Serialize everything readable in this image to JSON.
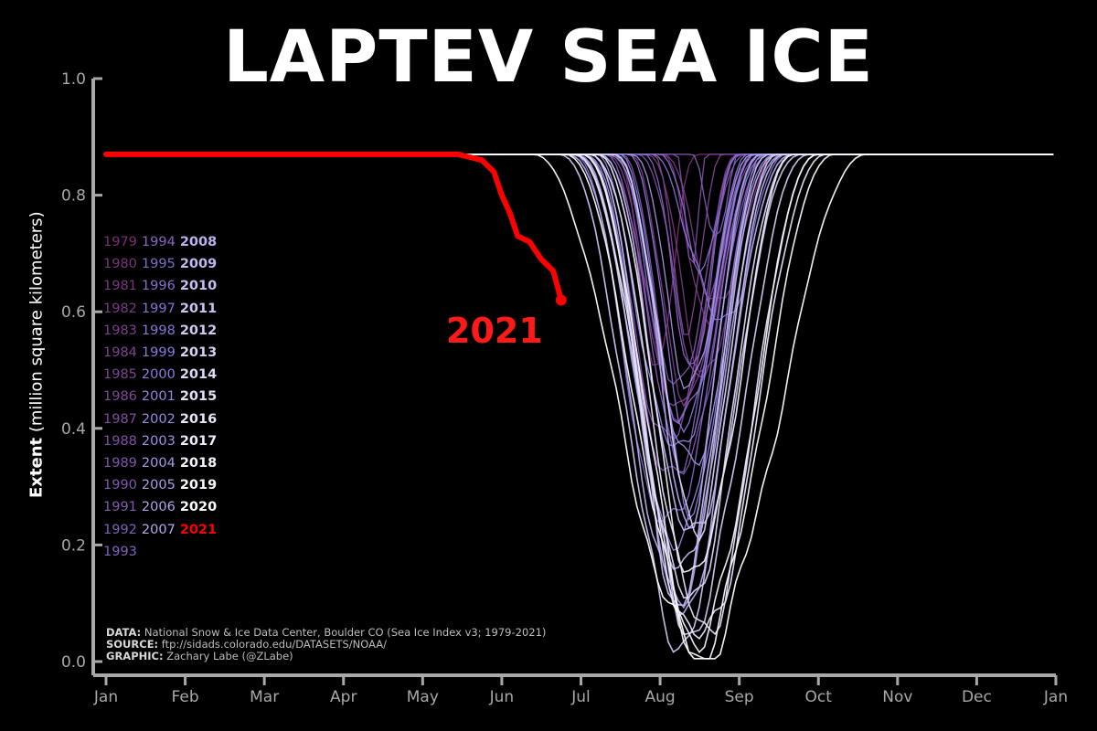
{
  "title": "LAPTEV SEA ICE",
  "ylabel_bold": "Extent",
  "ylabel_rest": " (million square kilometers)",
  "label_2021": "2021",
  "credits": {
    "data_label": "DATA:",
    "data_text": " National Snow & Ice Data Center, Boulder CO (Sea Ice Index v3; 1979-2021)",
    "source_label": "SOURCE:",
    "source_text": " ftp://sidads.colorado.edu/DATASETS/NOAA/",
    "graphic_label": "GRAPHIC:",
    "graphic_text": " Zachary Labe (@ZLabe)"
  },
  "legend_rows": [
    [
      "1979",
      "1994",
      "2008"
    ],
    [
      "1980",
      "1995",
      "2009"
    ],
    [
      "1981",
      "1996",
      "2010"
    ],
    [
      "1982",
      "1997",
      "2011"
    ],
    [
      "1983",
      "1998",
      "2012"
    ],
    [
      "1984",
      "1999",
      "2013"
    ],
    [
      "1985",
      "2000",
      "2014"
    ],
    [
      "1986",
      "2001",
      "2015"
    ],
    [
      "1987",
      "2002",
      "2016"
    ],
    [
      "1988",
      "2003",
      "2017"
    ],
    [
      "1989",
      "2004",
      "2018"
    ],
    [
      "1990",
      "2005",
      "2019"
    ],
    [
      "1991",
      "2006",
      "2020"
    ],
    [
      "1992",
      "2007",
      "2021"
    ],
    [
      "1993"
    ]
  ],
  "colors": {
    "background": "#000000",
    "axis": "#a8a8a8",
    "highlight": "#ff0000",
    "old_years": "#7a2f78",
    "mid_years": "#8a7be0",
    "recent_years": "#ffffff"
  },
  "chart_data": {
    "type": "line",
    "x_ticks": [
      "Jan",
      "Feb",
      "Mar",
      "Apr",
      "May",
      "Jun",
      "Jul",
      "Aug",
      "Sep",
      "Oct",
      "Nov",
      "Dec",
      "Jan"
    ],
    "ylim": [
      0.0,
      1.0
    ],
    "y_ticks": [
      "0.0",
      "0.2",
      "0.4",
      "0.6",
      "0.8",
      "1.0"
    ],
    "grid": false,
    "max_extent": 0.87,
    "highlight_series": {
      "name": "2021",
      "x_month": [
        0,
        4.45,
        4.75,
        4.9,
        5.0,
        5.1,
        5.2,
        5.35,
        5.5,
        5.65,
        5.75
      ],
      "values": [
        0.87,
        0.87,
        0.86,
        0.84,
        0.8,
        0.77,
        0.73,
        0.72,
        0.69,
        0.67,
        0.62
      ]
    },
    "historical_series": [
      {
        "year": 1979,
        "ms": 6.4,
        "mf": 7.5,
        "min": 0.52,
        "dip": 3.2
      },
      {
        "year": 1980,
        "ms": 7.0,
        "mf": 8.2,
        "min": 0.56,
        "dip": 2.6
      },
      {
        "year": 1981,
        "ms": 6.8,
        "mf": 8.4,
        "min": 0.48,
        "dip": 3.0
      },
      {
        "year": 1982,
        "ms": 7.0,
        "mf": 8.5,
        "min": 0.6,
        "dip": 2.8
      },
      {
        "year": 1983,
        "ms": 6.6,
        "mf": 8.0,
        "min": 0.44,
        "dip": 3.0
      },
      {
        "year": 1984,
        "ms": 6.3,
        "mf": 8.2,
        "min": 0.4,
        "dip": 3.2
      },
      {
        "year": 1985,
        "ms": 6.9,
        "mf": 7.8,
        "min": 0.55,
        "dip": 2.4
      },
      {
        "year": 1986,
        "ms": 6.2,
        "mf": 8.3,
        "min": 0.45,
        "dip": 3.4
      },
      {
        "year": 1987,
        "ms": 7.2,
        "mf": 7.6,
        "min": 0.68,
        "dip": 2.0
      },
      {
        "year": 1988,
        "ms": 6.7,
        "mf": 8.3,
        "min": 0.5,
        "dip": 2.8
      },
      {
        "year": 1989,
        "ms": 6.1,
        "mf": 8.1,
        "min": 0.36,
        "dip": 3.2
      },
      {
        "year": 1990,
        "ms": 6.0,
        "mf": 8.4,
        "min": 0.3,
        "dip": 3.4
      },
      {
        "year": 1991,
        "ms": 6.5,
        "mf": 8.0,
        "min": 0.46,
        "dip": 3.0
      },
      {
        "year": 1992,
        "ms": 7.4,
        "mf": 8.0,
        "min": 0.7,
        "dip": 2.0
      },
      {
        "year": 1993,
        "ms": 6.3,
        "mf": 8.2,
        "min": 0.36,
        "dip": 3.0
      },
      {
        "year": 1994,
        "ms": 6.8,
        "mf": 8.0,
        "min": 0.52,
        "dip": 2.6
      },
      {
        "year": 1995,
        "ms": 5.9,
        "mf": 8.3,
        "min": 0.22,
        "dip": 3.4
      },
      {
        "year": 1996,
        "ms": 7.0,
        "mf": 8.0,
        "min": 0.68,
        "dip": 2.2
      },
      {
        "year": 1997,
        "ms": 6.4,
        "mf": 8.2,
        "min": 0.4,
        "dip": 3.2
      },
      {
        "year": 1998,
        "ms": 6.9,
        "mf": 8.6,
        "min": 0.58,
        "dip": 2.6
      },
      {
        "year": 1999,
        "ms": 6.6,
        "mf": 8.1,
        "min": 0.42,
        "dip": 2.8
      },
      {
        "year": 2000,
        "ms": 6.5,
        "mf": 8.3,
        "min": 0.28,
        "dip": 3.2
      },
      {
        "year": 2001,
        "ms": 6.2,
        "mf": 8.2,
        "min": 0.35,
        "dip": 3.6
      },
      {
        "year": 2002,
        "ms": 6.0,
        "mf": 8.4,
        "min": 0.18,
        "dip": 3.6
      },
      {
        "year": 2003,
        "ms": 6.3,
        "mf": 8.5,
        "min": 0.32,
        "dip": 3.2
      },
      {
        "year": 2004,
        "ms": 6.6,
        "mf": 8.2,
        "min": 0.46,
        "dip": 2.8
      },
      {
        "year": 2005,
        "ms": 5.9,
        "mf": 8.6,
        "min": 0.12,
        "dip": 3.6
      },
      {
        "year": 2006,
        "ms": 6.4,
        "mf": 8.3,
        "min": 0.25,
        "dip": 3.2
      },
      {
        "year": 2007,
        "ms": 5.8,
        "mf": 8.7,
        "min": 0.08,
        "dip": 3.8
      },
      {
        "year": 2008,
        "ms": 6.0,
        "mf": 8.5,
        "min": 0.14,
        "dip": 3.6
      },
      {
        "year": 2009,
        "ms": 6.2,
        "mf": 8.6,
        "min": 0.2,
        "dip": 3.4
      },
      {
        "year": 2010,
        "ms": 6.1,
        "mf": 8.4,
        "min": 0.1,
        "dip": 3.6
      },
      {
        "year": 2011,
        "ms": 5.7,
        "mf": 8.8,
        "min": 0.04,
        "dip": 4.0
      },
      {
        "year": 2012,
        "ms": 5.9,
        "mf": 8.9,
        "min": 0.06,
        "dip": 3.8
      },
      {
        "year": 2013,
        "ms": 6.4,
        "mf": 8.5,
        "min": 0.24,
        "dip": 3.2
      },
      {
        "year": 2014,
        "ms": 6.0,
        "mf": 8.7,
        "min": 0.1,
        "dip": 3.6
      },
      {
        "year": 2015,
        "ms": 6.1,
        "mf": 9.0,
        "min": 0.05,
        "dip": 3.8
      },
      {
        "year": 2016,
        "ms": 5.9,
        "mf": 9.1,
        "min": 0.03,
        "dip": 4.0
      },
      {
        "year": 2017,
        "ms": 6.2,
        "mf": 8.7,
        "min": 0.15,
        "dip": 3.4
      },
      {
        "year": 2018,
        "ms": 6.0,
        "mf": 9.0,
        "min": 0.04,
        "dip": 3.8
      },
      {
        "year": 2019,
        "ms": 5.8,
        "mf": 9.2,
        "min": 0.02,
        "dip": 4.2
      },
      {
        "year": 2020,
        "ms": 5.4,
        "mf": 9.6,
        "min": 0.01,
        "dip": 4.6
      }
    ]
  }
}
